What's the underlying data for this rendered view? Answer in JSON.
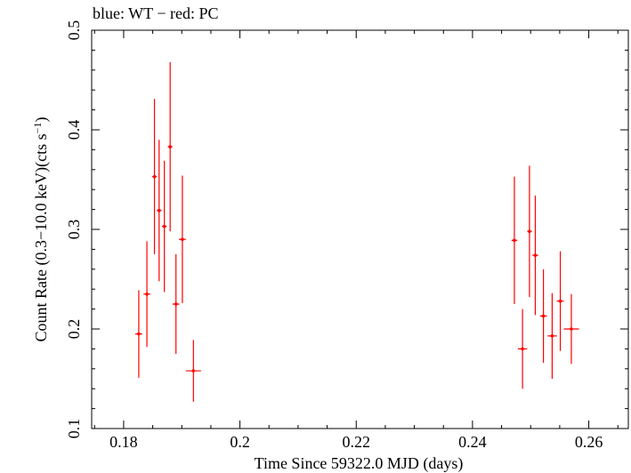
{
  "chart_data": {
    "type": "scatter",
    "title": "blue: WT − red: PC",
    "xlabel": "Time Since 59322.0 MJD (days)",
    "ylabel_main": "Count Rate (0.3−10.0 keV)(cts s",
    "ylabel_sup": "−1",
    "ylabel_end": ")",
    "xlim": [
      0.1745,
      0.2668
    ],
    "ylim": [
      0.1,
      0.5
    ],
    "xticks": [
      0.18,
      0.2,
      0.22,
      0.24,
      0.26
    ],
    "xtick_labels": [
      "0.18",
      "0.2",
      "0.22",
      "0.24",
      "0.26"
    ],
    "yticks": [
      0.1,
      0.2,
      0.3,
      0.4,
      0.5
    ],
    "ytick_labels": [
      "0.1",
      "0.2",
      "0.3",
      "0.4",
      "0.5"
    ],
    "grid": false,
    "series": [
      {
        "name": "PC",
        "color": "#ff0000",
        "points": [
          {
            "x": 0.1826,
            "xerr": 0.0006,
            "y": 0.195,
            "yerr": 0.044
          },
          {
            "x": 0.184,
            "xerr": 0.0006,
            "y": 0.235,
            "yerr": 0.053
          },
          {
            "x": 0.1853,
            "xerr": 0.0004,
            "y": 0.353,
            "yerr": 0.078
          },
          {
            "x": 0.1861,
            "xerr": 0.0004,
            "y": 0.319,
            "yerr": 0.071
          },
          {
            "x": 0.187,
            "xerr": 0.0004,
            "y": 0.303,
            "yerr": 0.066
          },
          {
            "x": 0.188,
            "xerr": 0.0004,
            "y": 0.383,
            "yerr": 0.085
          },
          {
            "x": 0.189,
            "xerr": 0.0006,
            "y": 0.225,
            "yerr": 0.05
          },
          {
            "x": 0.1901,
            "xerr": 0.0006,
            "y": 0.29,
            "yerr": 0.064
          },
          {
            "x": 0.192,
            "xerr": 0.0013,
            "y": 0.158,
            "yerr": 0.031
          },
          {
            "x": 0.2472,
            "xerr": 0.0005,
            "y": 0.289,
            "yerr": 0.064
          },
          {
            "x": 0.2486,
            "xerr": 0.0008,
            "y": 0.18,
            "yerr": 0.04
          },
          {
            "x": 0.2498,
            "xerr": 0.0004,
            "y": 0.298,
            "yerr": 0.066
          },
          {
            "x": 0.2508,
            "xerr": 0.0005,
            "y": 0.274,
            "yerr": 0.06
          },
          {
            "x": 0.2522,
            "xerr": 0.0006,
            "y": 0.213,
            "yerr": 0.047
          },
          {
            "x": 0.2537,
            "xerr": 0.0008,
            "y": 0.193,
            "yerr": 0.043
          },
          {
            "x": 0.2551,
            "xerr": 0.0006,
            "y": 0.228,
            "yerr": 0.05
          },
          {
            "x": 0.257,
            "xerr": 0.0013,
            "y": 0.2,
            "yerr": 0.035
          }
        ]
      }
    ]
  }
}
